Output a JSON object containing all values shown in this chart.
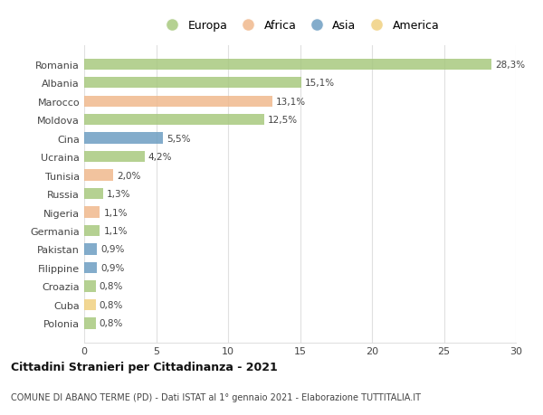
{
  "countries": [
    "Romania",
    "Albania",
    "Marocco",
    "Moldova",
    "Cina",
    "Ucraina",
    "Tunisia",
    "Russia",
    "Nigeria",
    "Germania",
    "Pakistan",
    "Filippine",
    "Croazia",
    "Cuba",
    "Polonia"
  ],
  "values": [
    28.3,
    15.1,
    13.1,
    12.5,
    5.5,
    4.2,
    2.0,
    1.3,
    1.1,
    1.1,
    0.9,
    0.9,
    0.8,
    0.8,
    0.8
  ],
  "labels": [
    "28,3%",
    "15,1%",
    "13,1%",
    "12,5%",
    "5,5%",
    "4,2%",
    "2,0%",
    "1,3%",
    "1,1%",
    "1,1%",
    "0,9%",
    "0,9%",
    "0,8%",
    "0,8%",
    "0,8%"
  ],
  "continents": [
    "Europa",
    "Europa",
    "Africa",
    "Europa",
    "Asia",
    "Europa",
    "Africa",
    "Europa",
    "Africa",
    "Europa",
    "Asia",
    "Asia",
    "Europa",
    "America",
    "Europa"
  ],
  "continent_colors": {
    "Europa": "#a8c97f",
    "Africa": "#f0b98d",
    "Asia": "#6d9ec2",
    "America": "#f0d080"
  },
  "legend_order": [
    "Europa",
    "Africa",
    "Asia",
    "America"
  ],
  "title": "Cittadini Stranieri per Cittadinanza - 2021",
  "subtitle": "COMUNE DI ABANO TERME (PD) - Dati ISTAT al 1° gennaio 2021 - Elaborazione TUTTITALIA.IT",
  "xlim": [
    0,
    30
  ],
  "xticks": [
    0,
    5,
    10,
    15,
    20,
    25,
    30
  ],
  "background_color": "#ffffff",
  "grid_color": "#e0e0e0",
  "bar_height": 0.6
}
